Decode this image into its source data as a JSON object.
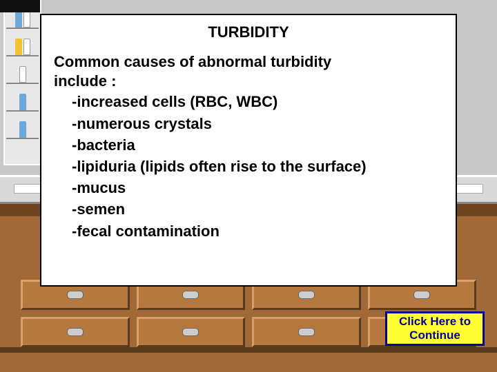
{
  "card": {
    "title": "TURBIDITY",
    "lead1": "Common causes of abnormal turbidity",
    "lead2": "include :",
    "items": {
      "i0": "-increased cells (RBC, WBC)",
      "i1": "-numerous crystals",
      "i2": "-bacteria",
      "i3": "-lipiduria (lipids often rise to the surface)",
      "i4": "-mucus",
      "i5": "-semen",
      "i6": "-fecal contamination"
    },
    "title_fontsize": 22,
    "body_fontsize": 22,
    "background_color": "#ffffff",
    "border_color": "#000000"
  },
  "continue": {
    "line1": "Click Here to",
    "line2": "Continue",
    "bg": "#ffff33",
    "border": "#000099",
    "text_color": "#000099"
  },
  "background": {
    "wall_color": "#c8c8c8",
    "cabinet_color": "#a06a38",
    "drawer_face": "#b5793f",
    "drawer_border": "#5b3a1c",
    "counter_color": "#d9d9d9"
  }
}
